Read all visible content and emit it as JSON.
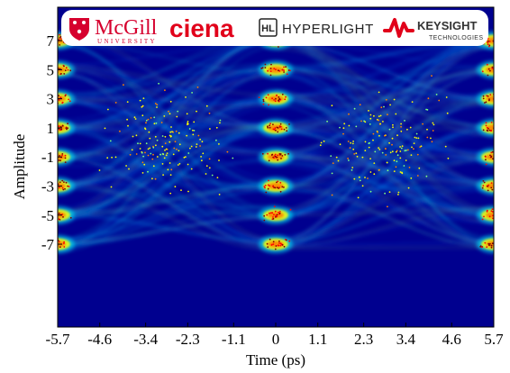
{
  "logos": {
    "mcgill": {
      "name": "McGill",
      "sub": "UNIVERSITY",
      "color": "#d6002e"
    },
    "ciena": {
      "name": "ciena",
      "color": "#e1001a"
    },
    "hyperlight": {
      "mark": "HL",
      "name": "HYPERLIGHT",
      "color": "#222222"
    },
    "keysight": {
      "name": "KEYSIGHT",
      "sub": "TECHNOLOGIES",
      "color": "#e1001a"
    }
  },
  "chart_data": {
    "type": "heatmap",
    "subtype": "eye-diagram",
    "title": "",
    "xlabel": "Time (ps)",
    "ylabel": "Amplitude",
    "x_ticks": [
      "-5.7",
      "-4.6",
      "-3.4",
      "-2.3",
      "-1.1",
      "0",
      "1.1",
      "2.3",
      "3.4",
      "4.6",
      "5.7"
    ],
    "x_tick_values": [
      -5.7,
      -4.6,
      -3.4,
      -2.3,
      -1.1,
      0,
      1.1,
      2.3,
      3.4,
      4.6,
      5.7
    ],
    "y_ticks": [
      "7",
      "5",
      "3",
      "1",
      "-1",
      "-3",
      "-5",
      "-7"
    ],
    "y_tick_values": [
      7,
      5,
      3,
      1,
      -1,
      -3,
      -5,
      -7
    ],
    "xlim": [
      -5.7,
      5.7
    ],
    "ylim": [
      -12.7,
      9.3
    ],
    "levels": [
      -7,
      -5,
      -3,
      -1,
      1,
      3,
      5,
      7
    ],
    "sampling_instants_ps": [
      -5.7,
      0,
      5.7
    ],
    "colormap": [
      "#00008f",
      "#0000ff",
      "#0080ff",
      "#00ffff",
      "#80ff80",
      "#ffff00",
      "#ff8000",
      "#ff0000",
      "#800000"
    ],
    "background_color": "#00008f",
    "grid": false,
    "legend": false
  }
}
